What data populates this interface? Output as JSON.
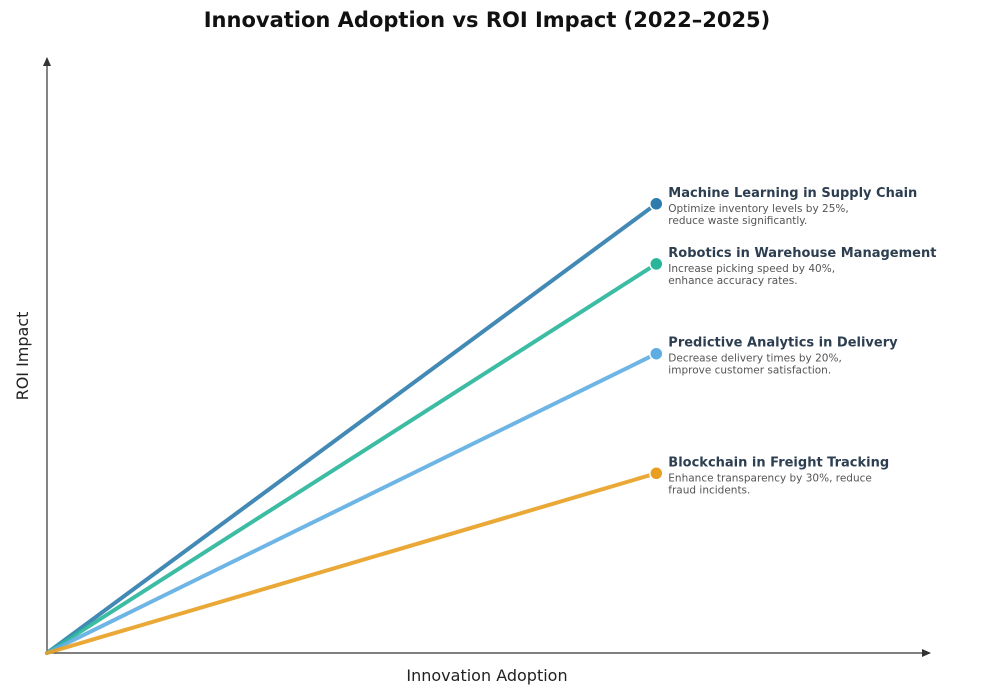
{
  "chart_data": {
    "type": "line",
    "title": "Innovation Adoption vs ROI Impact (2022–2025)",
    "xlabel": "Innovation Adoption",
    "ylabel": "ROI Impact",
    "grid": false,
    "legend": "none",
    "xlim": [
      0,
      1
    ],
    "ylim": [
      0,
      1
    ],
    "series": [
      {
        "name": "Machine Learning in Supply Chain",
        "description": [
          "Optimize inventory levels by 25%,",
          "reduce waste significantly."
        ],
        "color": "#2e7cad",
        "x": [
          0,
          0.69
        ],
        "y": [
          0,
          0.755
        ]
      },
      {
        "name": "Robotics in Warehouse Management",
        "description": [
          "Increase picking speed by 40%,",
          "enhance accuracy rates."
        ],
        "color": "#28b59a",
        "x": [
          0,
          0.69
        ],
        "y": [
          0,
          0.654
        ]
      },
      {
        "name": "Predictive Analytics in Delivery",
        "description": [
          "Decrease delivery times by 20%,",
          "improve customer satisfaction."
        ],
        "color": "#5dade2",
        "x": [
          0,
          0.69
        ],
        "y": [
          0,
          0.503
        ]
      },
      {
        "name": "Blockchain in Freight Tracking",
        "description": [
          "Enhance transparency by 30%, reduce",
          "fraud incidents."
        ],
        "color": "#e89e20",
        "x": [
          0,
          0.69
        ],
        "y": [
          0,
          0.302
        ]
      }
    ]
  }
}
